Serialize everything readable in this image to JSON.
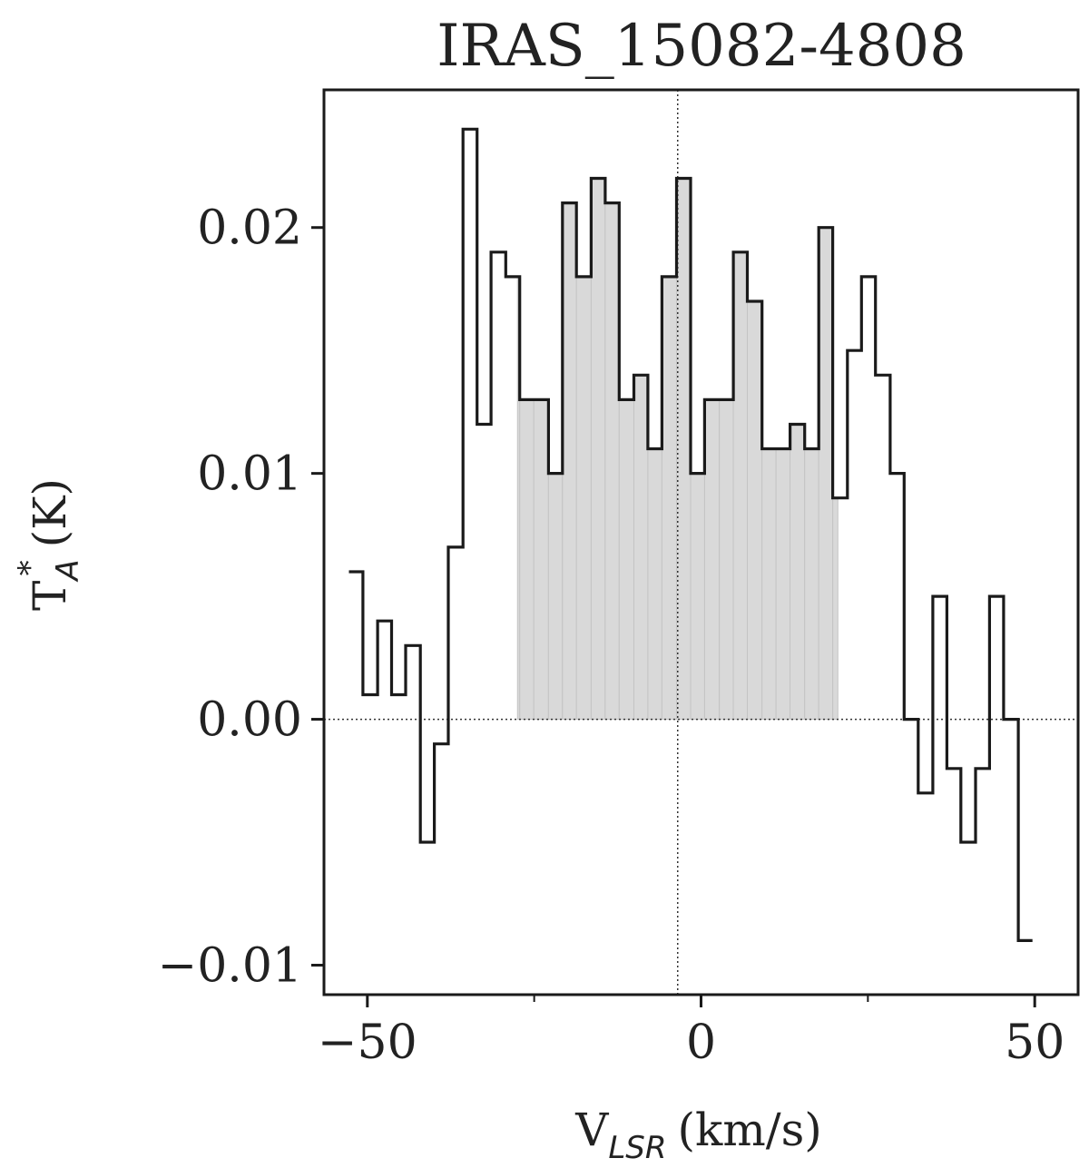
{
  "chart_data": {
    "type": "line",
    "style": "step",
    "title": "IRAS_15082-4808",
    "xlabel": {
      "main": "V",
      "subscript": "LSR",
      "unit": "(km/s)"
    },
    "ylabel": {
      "main": "T",
      "superscript": "*",
      "subscript": "A",
      "unit": "(K)"
    },
    "xlim": [
      -56.5,
      56.5
    ],
    "ylim": [
      -0.0112,
      0.0256
    ],
    "x_ticks": [
      {
        "value": -50,
        "label": "−50"
      },
      {
        "value": 0,
        "label": "0"
      },
      {
        "value": 50,
        "label": "50"
      }
    ],
    "x_minor_ticks": [
      -25,
      25
    ],
    "y_ticks": [
      {
        "value": -0.01,
        "label": "−0.01"
      },
      {
        "value": 0.0,
        "label": "0.00"
      },
      {
        "value": 0.01,
        "label": "0.01"
      },
      {
        "value": 0.02,
        "label": "0.02"
      }
    ],
    "reference_lines": {
      "vertical_x": -3.5,
      "horizontal_y": 0.0,
      "style": "dotted"
    },
    "shaded_velocity_range": [
      -27.5,
      20.5
    ],
    "shade_color": "#d9d9d9",
    "line_color": "#1a1a1a",
    "bin_width": 2.13,
    "series": [
      {
        "x": [
          -51.7,
          -49.6,
          -47.4,
          -45.3,
          -43.2,
          -41.0,
          -38.9,
          -36.8,
          -34.6,
          -32.5,
          -30.4,
          -28.2,
          -26.1,
          -24.0,
          -21.8,
          -19.7,
          -17.6,
          -15.4,
          -13.3,
          -11.2,
          -9.0,
          -6.9,
          -4.8,
          -2.6,
          -0.5,
          1.6,
          3.8,
          5.9,
          8.0,
          10.2,
          12.3,
          14.4,
          16.6,
          18.7,
          20.8,
          23.0,
          25.1,
          27.2,
          29.4,
          31.5,
          33.6,
          35.8,
          37.9,
          40.0,
          42.2,
          44.3,
          46.4,
          48.6
        ],
        "y": [
          0.006,
          0.001,
          0.004,
          0.001,
          0.003,
          -0.005,
          -0.001,
          0.007,
          0.024,
          0.012,
          0.019,
          0.018,
          0.013,
          0.013,
          0.01,
          0.021,
          0.018,
          0.022,
          0.021,
          0.013,
          0.014,
          0.011,
          0.018,
          0.022,
          0.01,
          0.013,
          0.013,
          0.019,
          0.017,
          0.011,
          0.011,
          0.012,
          0.011,
          0.02,
          0.009,
          0.015,
          0.018,
          0.014,
          0.01,
          0.0,
          -0.003,
          0.005,
          -0.002,
          -0.005,
          -0.002,
          0.005,
          0.0,
          -0.009
        ]
      }
    ]
  }
}
